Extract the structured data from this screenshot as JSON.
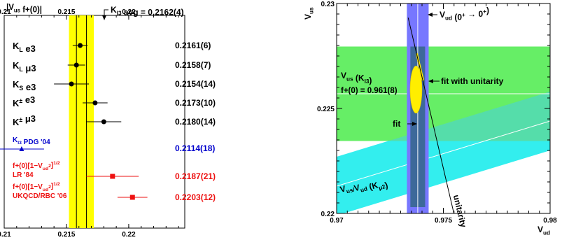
{
  "chart_data": [
    {
      "type": "scatter",
      "subtype": "forest-plot",
      "title": "|V_us f+(0)|",
      "xlim": [
        0.21,
        0.2245
      ],
      "xticks": [
        0.21,
        0.215,
        0.22
      ],
      "xtick_labels": [
        "0.21",
        "0.215",
        "0.22"
      ],
      "average_annotation": "K_l3 avg = 0.2162(4)",
      "average": {
        "value": 0.2162,
        "error": 0.0004,
        "band_color": "#ffff00"
      },
      "rows": [
        {
          "label": "K_L e3",
          "value": 0.2161,
          "error": 0.0006,
          "value_text": "0.2161(6)",
          "color": "#000000"
        },
        {
          "label": "K_L μ3",
          "value": 0.2158,
          "error": 0.0007,
          "value_text": "0.2158(7)",
          "color": "#000000"
        },
        {
          "label": "K_S e3",
          "value": 0.2154,
          "error": 0.0014,
          "value_text": "0.2154(14)",
          "color": "#000000"
        },
        {
          "label": "K± e3",
          "value": 0.2173,
          "error": 0.001,
          "value_text": "0.2173(10)",
          "color": "#000000"
        },
        {
          "label": "K± μ3",
          "value": 0.218,
          "error": 0.0014,
          "value_text": "0.2180(14)",
          "color": "#000000"
        },
        {
          "label": "K_l3 PDG '04",
          "value": 0.2114,
          "error": 0.0018,
          "value_text": "0.2114(18)",
          "color": "#0000cc",
          "marker": "triangle"
        },
        {
          "label": "f+(0)[1−V_ud²]^1/2 LR '84",
          "value": 0.2187,
          "error": 0.0021,
          "value_text": "0.2187(21)",
          "color": "#ee1111",
          "marker": "square"
        },
        {
          "label": "f+(0)[1−V_ud²]^1/2 UKQCD/RBC '06",
          "value": 0.2203,
          "error": 0.0012,
          "value_text": "0.2203(12)",
          "color": "#ee1111",
          "marker": "square"
        }
      ]
    },
    {
      "type": "area",
      "subtype": "constraint-plot",
      "xlabel": "V_ud",
      "ylabel": "V_us",
      "xlim": [
        0.97,
        0.98
      ],
      "ylim": [
        0.22,
        0.23
      ],
      "xtick_labels": [
        "0.97",
        "0.975",
        "0.98"
      ],
      "ytick_labels": [
        "0.22",
        "0.225",
        "0.23"
      ],
      "vud_band": {
        "center": 0.9738,
        "half_width": 0.0003,
        "color": "#7777ff",
        "label": "V_ud (0⁺ → 0⁺)"
      },
      "kl3_band": {
        "center": 0.2257,
        "half_width": 0.0009,
        "color": "#66ee66",
        "label": "V_us (K_l3)",
        "note": "f+(0) = 0.961(8)"
      },
      "kmu2_band": {
        "color": "#33eeee",
        "label": "V_us/V_ud (K_μ2)",
        "y_at_left": [
          0.2199,
          0.2227
        ],
        "y_at_right": [
          0.223,
          0.2258
        ]
      },
      "unitarity_label": "unitarity",
      "fit_ellipse": {
        "cx": 0.97372,
        "cy": 0.2259,
        "rx": 0.00028,
        "ry": 0.00113,
        "color": "#ffee00",
        "label": "fit"
      },
      "fit_with_unitarity": {
        "v_ud_range": [
          0.97375,
          0.97405
        ],
        "color": "#ffee00",
        "label": "fit with unitarity"
      }
    }
  ]
}
